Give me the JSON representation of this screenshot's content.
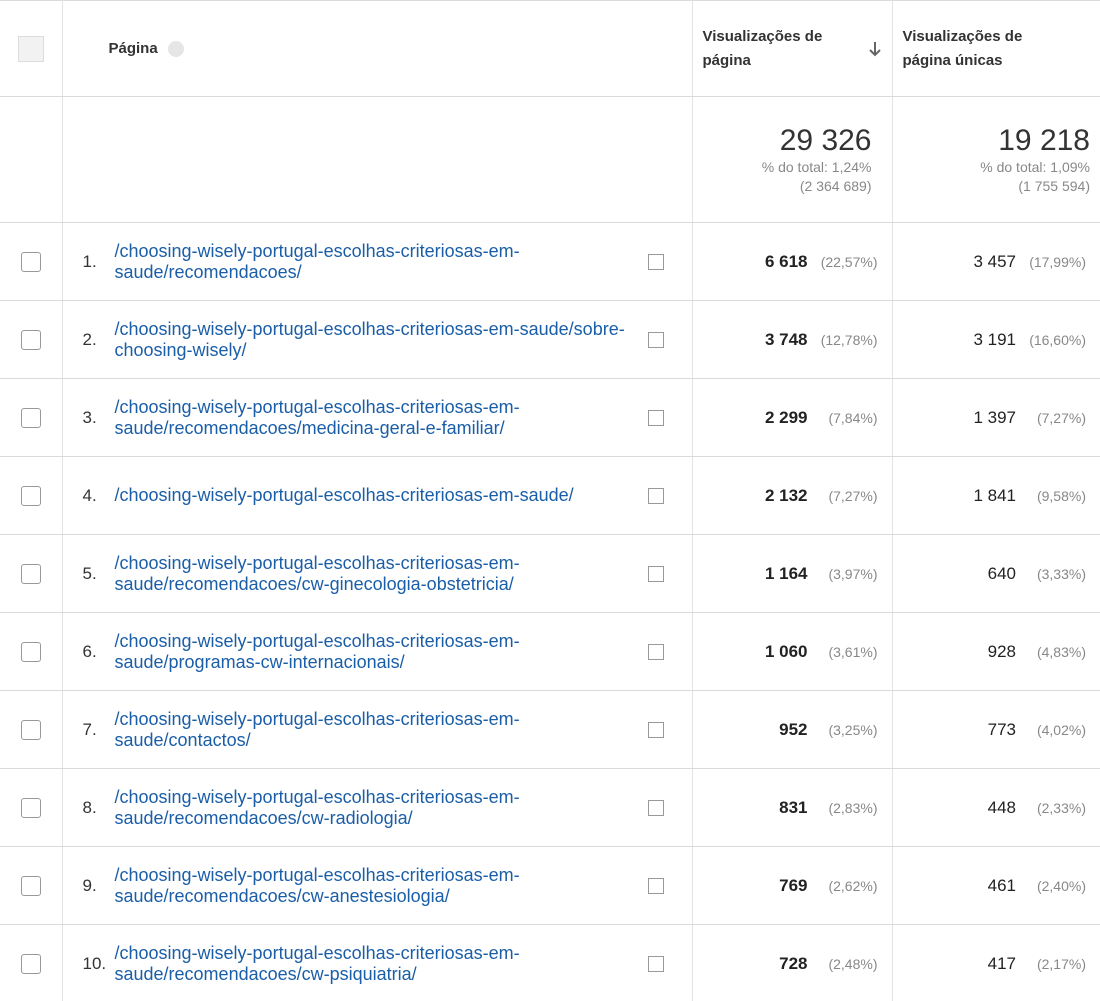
{
  "table": {
    "header": {
      "page": "Página",
      "views": "Visualizações de página",
      "unique": "Visualizações de página únicas"
    },
    "totals": {
      "views": "29 326",
      "views_share": "% do total: 1,24%",
      "views_total": "(2 364 689)",
      "unique": "19 218",
      "unique_share": "% do total: 1,09%",
      "unique_total": "(1 755 594)"
    },
    "rows": [
      {
        "rank": "1.",
        "page": "/choosing-wisely-portugal-escolhas-criteriosas-em-saude/recomendacoes/",
        "views": "6 618",
        "views_pct": "(22,57%)",
        "unique": "3 457",
        "unique_pct": "(17,99%)"
      },
      {
        "rank": "2.",
        "page": "/choosing-wisely-portugal-escolhas-criteriosas-em-saude/sobre-choosing-wisely/",
        "views": "3 748",
        "views_pct": "(12,78%)",
        "unique": "3 191",
        "unique_pct": "(16,60%)"
      },
      {
        "rank": "3.",
        "page": "/choosing-wisely-portugal-escolhas-criteriosas-em-saude/recomendacoes/medicina-geral-e-familiar/",
        "views": "2 299",
        "views_pct": "(7,84%)",
        "unique": "1 397",
        "unique_pct": "(7,27%)"
      },
      {
        "rank": "4.",
        "page": "/choosing-wisely-portugal-escolhas-criteriosas-em-saude/",
        "views": "2 132",
        "views_pct": "(7,27%)",
        "unique": "1 841",
        "unique_pct": "(9,58%)"
      },
      {
        "rank": "5.",
        "page": "/choosing-wisely-portugal-escolhas-criteriosas-em-saude/recomendacoes/cw-ginecologia-obstetricia/",
        "views": "1 164",
        "views_pct": "(3,97%)",
        "unique": "640",
        "unique_pct": "(3,33%)"
      },
      {
        "rank": "6.",
        "page": "/choosing-wisely-portugal-escolhas-criteriosas-em-saude/programas-cw-internacionais/",
        "views": "1 060",
        "views_pct": "(3,61%)",
        "unique": "928",
        "unique_pct": "(4,83%)"
      },
      {
        "rank": "7.",
        "page": "/choosing-wisely-portugal-escolhas-criteriosas-em-saude/contactos/",
        "views": "952",
        "views_pct": "(3,25%)",
        "unique": "773",
        "unique_pct": "(4,02%)"
      },
      {
        "rank": "8.",
        "page": "/choosing-wisely-portugal-escolhas-criteriosas-em-saude/recomendacoes/cw-radiologia/",
        "views": "831",
        "views_pct": "(2,83%)",
        "unique": "448",
        "unique_pct": "(2,33%)"
      },
      {
        "rank": "9.",
        "page": "/choosing-wisely-portugal-escolhas-criteriosas-em-saude/recomendacoes/cw-anestesiologia/",
        "views": "769",
        "views_pct": "(2,62%)",
        "unique": "461",
        "unique_pct": "(2,40%)"
      },
      {
        "rank": "10.",
        "page": "/choosing-wisely-portugal-escolhas-criteriosas-em-saude/recomendacoes/cw-psiquiatria/",
        "views": "728",
        "views_pct": "(2,48%)",
        "unique": "417",
        "unique_pct": "(2,17%)"
      }
    ]
  }
}
